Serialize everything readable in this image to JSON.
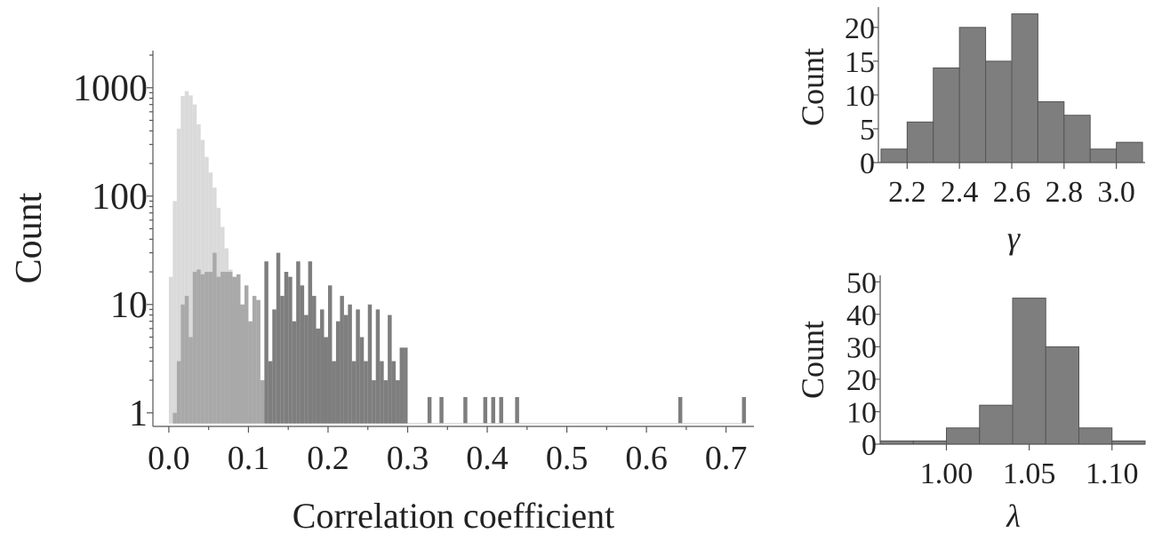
{
  "chart_data": [
    {
      "id": "correlation-histogram",
      "type": "bar",
      "xlabel": "Correlation coefficient",
      "ylabel": "Count",
      "yscale": "log",
      "xlim": [
        -0.02,
        0.735
      ],
      "ylim": [
        0.75,
        2200
      ],
      "xticks": [
        "0.0",
        "0.1",
        "0.2",
        "0.3",
        "0.4",
        "0.5",
        "0.6",
        "0.7"
      ],
      "yticks": [
        "1",
        "10",
        "100",
        "1000"
      ],
      "grid": false,
      "legend": "none",
      "bin_width": 0.005,
      "colors": {
        "light": "#dadada",
        "medium": "#a9a9a9",
        "dark": "#7e7e7e"
      },
      "series": [
        {
          "style": "light",
          "x": [
            0.0,
            0.005,
            0.01,
            0.015,
            0.02,
            0.025,
            0.03,
            0.035,
            0.04,
            0.045,
            0.05,
            0.055,
            0.06,
            0.065,
            0.07,
            0.075,
            0.08,
            0.085,
            0.09,
            0.095,
            0.1,
            0.105,
            0.11,
            0.115
          ],
          "values": [
            18,
            90,
            420,
            840,
            930,
            850,
            700,
            460,
            330,
            230,
            165,
            120,
            78,
            52,
            33,
            21,
            13,
            8,
            5,
            3,
            2.5,
            2,
            1.6,
            1.3
          ]
        },
        {
          "style": "medium",
          "x": [
            0.005,
            0.01,
            0.015,
            0.02,
            0.025,
            0.03,
            0.035,
            0.04,
            0.045,
            0.05,
            0.055,
            0.06,
            0.065,
            0.07,
            0.075,
            0.08,
            0.085,
            0.09,
            0.095,
            0.1,
            0.105,
            0.11,
            0.115
          ],
          "values": [
            1,
            3,
            10,
            12,
            5,
            20,
            21,
            19,
            20,
            20,
            30,
            18,
            20,
            20,
            20,
            18,
            19,
            10,
            15,
            7,
            12,
            11,
            2
          ]
        },
        {
          "style": "dark",
          "x": [
            0.12,
            0.125,
            0.13,
            0.135,
            0.14,
            0.145,
            0.15,
            0.155,
            0.16,
            0.165,
            0.17,
            0.175,
            0.18,
            0.185,
            0.19,
            0.195,
            0.2,
            0.205,
            0.21,
            0.215,
            0.22,
            0.225,
            0.23,
            0.235,
            0.24,
            0.245,
            0.25,
            0.255,
            0.26,
            0.265,
            0.27,
            0.275,
            0.28,
            0.285,
            0.29,
            0.295,
            0.325,
            0.34,
            0.37,
            0.395,
            0.405,
            0.415,
            0.435,
            0.64,
            0.72
          ],
          "values": [
            25,
            3,
            9,
            30,
            12,
            20,
            18,
            7,
            25,
            15,
            8,
            25,
            12,
            6,
            9,
            5,
            15,
            3,
            7,
            12,
            8,
            10,
            3,
            9,
            5,
            3,
            10,
            2,
            9,
            3,
            2,
            8,
            3,
            2,
            4,
            4,
            1.4,
            1.4,
            1.4,
            1.4,
            1.4,
            1.4,
            1.4,
            1.4,
            1.4
          ]
        }
      ]
    },
    {
      "id": "gamma-histogram",
      "type": "bar",
      "xlabel": "γ",
      "ylabel": "Count",
      "xlim": [
        2.09,
        3.11
      ],
      "ylim": [
        0,
        23
      ],
      "xticks": [
        "2.2",
        "2.4",
        "2.6",
        "2.8",
        "3.0"
      ],
      "yticks": [
        "0",
        "5",
        "10",
        "15",
        "20"
      ],
      "grid": false,
      "legend": "none",
      "bin_width": 0.1,
      "color": "#7e7e7e",
      "bins": [
        2.1,
        2.2,
        2.3,
        2.4,
        2.5,
        2.6,
        2.7,
        2.8,
        2.9,
        3.0
      ],
      "values": [
        2,
        6,
        14,
        20,
        15,
        22,
        9,
        7,
        2,
        3
      ]
    },
    {
      "id": "lambda-histogram",
      "type": "bar",
      "xlabel": "λ",
      "ylabel": "Count",
      "xlim": [
        0.96,
        1.12
      ],
      "ylim": [
        0,
        52
      ],
      "xticks": [
        "1.00",
        "1.05",
        "1.10"
      ],
      "yticks": [
        "0",
        "10",
        "20",
        "30",
        "40",
        "50"
      ],
      "grid": false,
      "legend": "none",
      "bin_width": 0.02,
      "color": "#7e7e7e",
      "bins": [
        0.96,
        0.98,
        1.0,
        1.02,
        1.04,
        1.06,
        1.08,
        1.1
      ],
      "values": [
        1,
        1,
        5,
        12,
        45,
        30,
        5,
        1
      ]
    }
  ]
}
